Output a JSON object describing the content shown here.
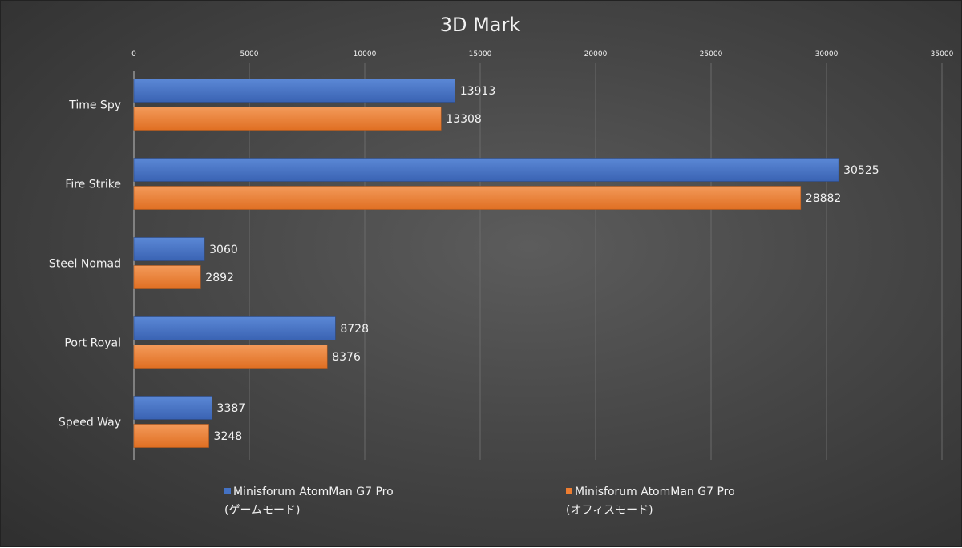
{
  "chart_data": {
    "type": "bar",
    "orientation": "horizontal",
    "title": "3D Mark",
    "categories": [
      "Time Spy",
      "Fire Strike",
      "Steel Nomad",
      "Port Royal",
      "Speed Way"
    ],
    "series": [
      {
        "name": "Minisforum AtomMan G7 Pro\n(ゲームモード)",
        "name_line1": "Minisforum AtomMan G7 Pro",
        "name_line2": "(ゲームモード)",
        "color": "#4472c4",
        "values": [
          13913,
          30525,
          3060,
          8728,
          3387
        ]
      },
      {
        "name": "Minisforum AtomMan G7 Pro\n(オフィスモード)",
        "name_line1": "Minisforum AtomMan G7 Pro",
        "name_line2": "(オフィスモード)",
        "color": "#ed7d31",
        "values": [
          13308,
          28882,
          2892,
          8376,
          3248
        ]
      }
    ],
    "xlim": [
      0,
      35000
    ],
    "xticks": [
      "0",
      "5000",
      "10000",
      "15000",
      "20000",
      "25000",
      "30000",
      "35000"
    ],
    "xaxis_position": "top",
    "grid": true,
    "data_labels": true,
    "legend_position": "bottom"
  }
}
